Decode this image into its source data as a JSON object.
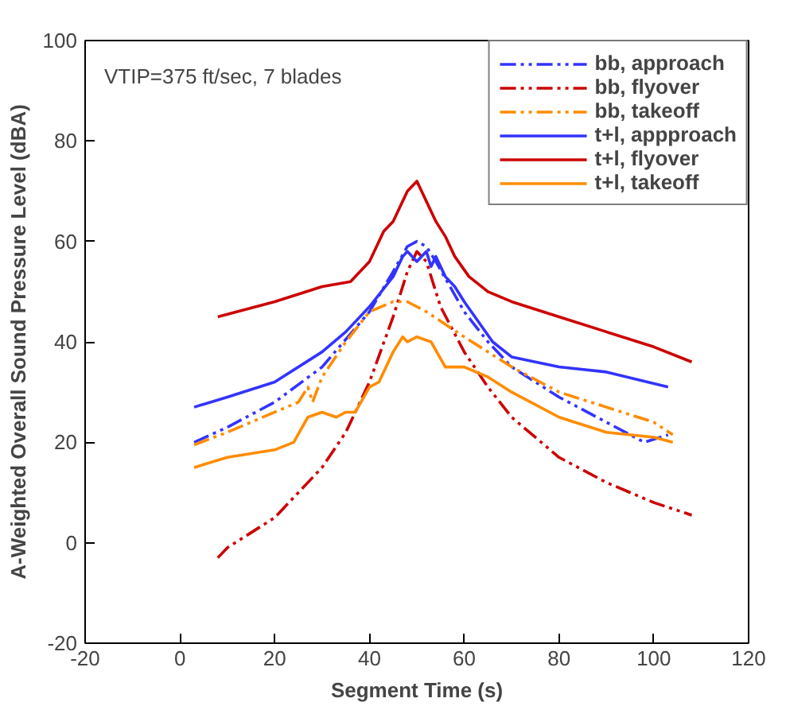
{
  "chart_data": {
    "type": "line",
    "xlabel": "Segment Time (s)",
    "ylabel": "A-Weighted Overall Sound Pressure Level (dBA)",
    "annotations": [
      "VTIP=375 ft/sec, 7 blades"
    ],
    "xlim": [
      -20,
      120
    ],
    "ylim": [
      -20,
      100
    ],
    "xticks": [
      -20,
      0,
      20,
      40,
      60,
      80,
      100,
      120
    ],
    "yticks": [
      -20,
      0,
      20,
      40,
      60,
      80,
      100
    ],
    "grid": false,
    "legend": "top right",
    "marker": "none",
    "series": [
      {
        "name": "bb, approach",
        "color": "#3333ff",
        "line_style": "dashdot",
        "x": [
          3,
          10,
          20,
          30,
          40,
          45,
          48,
          50,
          52,
          54,
          57,
          60,
          65,
          70,
          80,
          90,
          98,
          103
        ],
        "values": [
          20,
          23,
          28,
          35,
          46,
          54,
          59,
          60,
          59,
          56,
          51,
          46,
          40,
          35,
          29,
          24,
          20,
          21.5
        ]
      },
      {
        "name": "bb, flyover",
        "color": "#cc0000",
        "line_style": "dashdot",
        "x": [
          8,
          10,
          20,
          30,
          35,
          40,
          45,
          48,
          50,
          52,
          55,
          60,
          65,
          70,
          80,
          90,
          100,
          108
        ],
        "values": [
          -3,
          -1,
          5,
          15,
          22,
          32,
          45,
          54,
          58,
          56,
          47,
          38,
          31,
          25,
          17,
          12,
          8,
          5.5
        ]
      },
      {
        "name": "bb, takeoff",
        "color": "#ff8c00",
        "line_style": "dashdot",
        "x": [
          3,
          10,
          20,
          25,
          27,
          28,
          30,
          35,
          40,
          45,
          48,
          52,
          60,
          70,
          80,
          90,
          100,
          104
        ],
        "values": [
          19.5,
          22,
          26,
          28,
          31,
          28,
          33,
          40,
          46,
          48,
          48,
          46,
          41,
          35,
          30,
          27,
          24,
          21.5
        ]
      },
      {
        "name": "t+l, appproach",
        "color": "#3333ff",
        "line_style": "solid",
        "x": [
          3,
          10,
          20,
          30,
          35,
          40,
          45,
          47,
          48,
          50,
          52,
          53,
          54,
          56,
          58,
          60,
          63,
          66,
          70,
          80,
          90,
          103
        ],
        "values": [
          27,
          29,
          32,
          38,
          42,
          47,
          53,
          57,
          58,
          56,
          58,
          55,
          57,
          53,
          51,
          48,
          44,
          40,
          37,
          35,
          34,
          31
        ]
      },
      {
        "name": "t+l, flyover",
        "color": "#cc0000",
        "line_style": "solid",
        "x": [
          8,
          20,
          30,
          36,
          40,
          43,
          45,
          47,
          48,
          49,
          50,
          51,
          52,
          54,
          56,
          58,
          61,
          65,
          70,
          80,
          90,
          100,
          108
        ],
        "values": [
          45,
          48,
          51,
          52,
          56,
          62,
          64,
          68,
          70,
          71,
          72,
          70,
          68,
          64,
          61,
          57,
          53,
          50,
          48,
          45,
          42,
          39,
          36
        ]
      },
      {
        "name": "t+l, takeoff",
        "color": "#ff8c00",
        "line_style": "solid",
        "x": [
          3,
          10,
          20,
          24,
          27,
          30,
          33,
          35,
          37,
          40,
          42,
          45,
          47,
          48,
          50,
          53,
          56,
          60,
          65,
          70,
          80,
          90,
          100,
          104
        ],
        "values": [
          15,
          17,
          18.5,
          20,
          25,
          26,
          25,
          26,
          26,
          31,
          32,
          38,
          41,
          40,
          41,
          40,
          35,
          35,
          33,
          30,
          25,
          22,
          21,
          20
        ]
      }
    ]
  }
}
